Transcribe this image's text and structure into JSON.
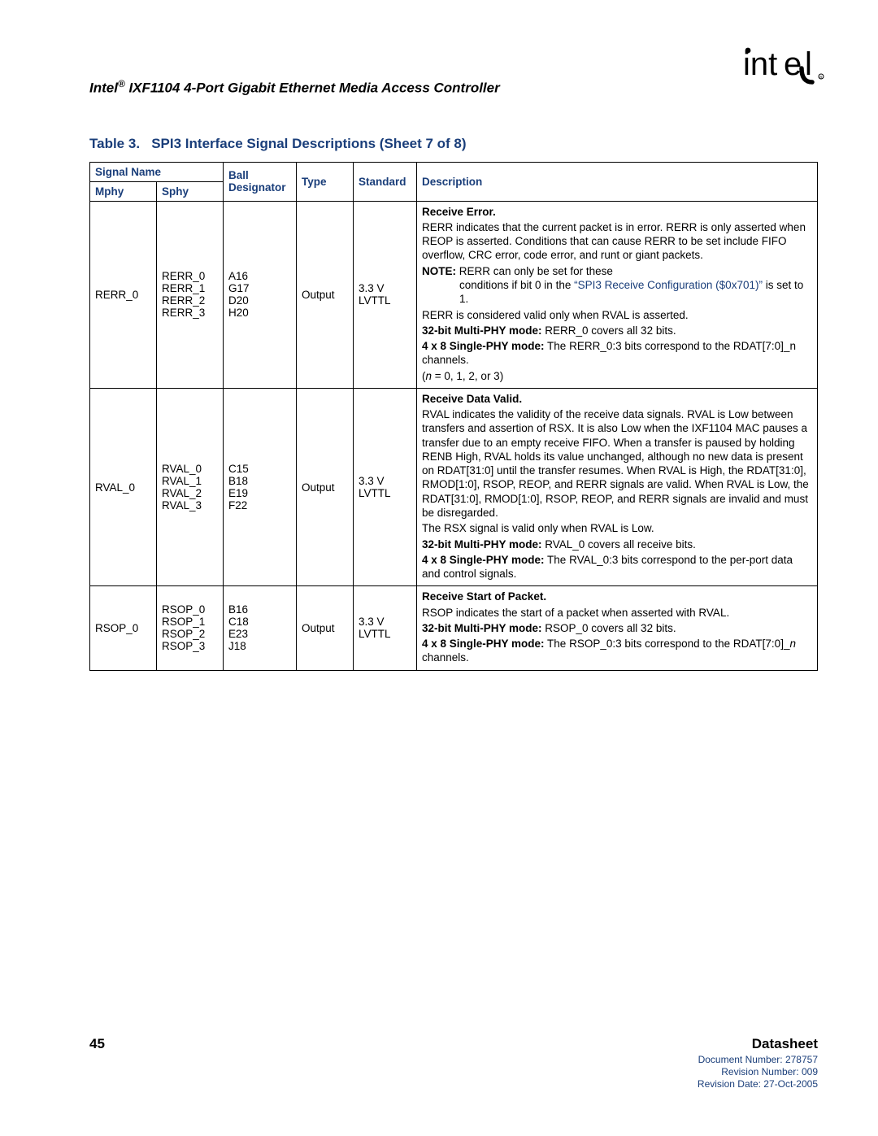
{
  "header": {
    "doc_title_html": "Intel<span class='sup'>®</span> IXF1104 4-Port Gigabit Ethernet Media Access Controller"
  },
  "table": {
    "title_prefix": "Table 3.",
    "title_rest": "SPI3 Interface Signal Descriptions (Sheet 7 of 8)",
    "headers": {
      "signal_name": "Signal Name",
      "mphy": "Mphy",
      "sphy": "Sphy",
      "ball": "Ball Designator",
      "type": "Type",
      "standard": "Standard",
      "description": "Description"
    },
    "rows": [
      {
        "mphy": "RERR_0",
        "sphy": "RERR_0\nRERR_1\nRERR_2\nRERR_3",
        "ball": "A16\nG17\nD20\nH20",
        "type": "Output",
        "standard": "3.3 V\nLVTTL",
        "desc_html": "<p><span class='bold'>Receive Error.</span></p><p>RERR indicates that the current packet is in error. RERR is only asserted when REOP is asserted. Conditions that can cause RERR to be set include FIFO overflow, CRC error, code error, and runt or giant packets.</p><p><span class='note-label'>NOTE:</span>  RERR can only be set for these<span class='indent'>conditions if bit 0 in the <span class='link'>“SPI3 Receive Configuration ($0x701)”</span> is set to 1.</span></p><p>RERR is considered valid only when RVAL is asserted.</p><p><span class='bold'>32-bit Multi-PHY mode:</span> RERR_0 covers all 32 bits.</p><p><span class='bold'>4 x 8 Single-PHY mode:</span> The RERR_0:3 bits correspond to the RDAT[7:0]_n channels.</p><p>(<i>n</i> = 0, 1, 2, or 3)</p>"
      },
      {
        "mphy": "RVAL_0",
        "sphy": "RVAL_0\nRVAL_1\nRVAL_2\nRVAL_3",
        "ball": "C15\nB18\nE19\nF22",
        "type": "Output",
        "standard": "3.3 V\nLVTTL",
        "desc_html": "<p><span class='bold'>Receive Data Valid.</span></p><p>RVAL indicates the validity of the receive data signals. RVAL is Low between transfers and assertion of RSX. It is also Low when the IXF1104 MAC pauses a transfer due to an empty receive FIFO. When a transfer is paused by holding RENB High, RVAL holds its value unchanged, although no new data is present on RDAT[31:0] until the transfer resumes. When RVAL is High, the RDAT[31:0], RMOD[1:0], RSOP, REOP, and RERR signals are valid. When RVAL is Low, the RDAT[31:0], RMOD[1:0], RSOP, REOP, and RERR signals are invalid and must be disregarded.</p><p>The RSX signal is valid only when RVAL is Low.</p><p><span class='bold'>32-bit Multi-PHY mode:</span> RVAL_0 covers all receive bits.</p><p><span class='bold'>4 x 8 Single-PHY mode:</span> The RVAL_0:3 bits correspond to the per-port data and control signals.</p>"
      },
      {
        "mphy": "RSOP_0",
        "sphy": "RSOP_0\nRSOP_1\nRSOP_2\nRSOP_3",
        "ball": "B16\nC18\nE23\nJ18",
        "type": "Output",
        "standard": "3.3 V\nLVTTL",
        "desc_html": "<p><span class='bold'>Receive Start of Packet.</span></p><p>RSOP indicates the start of a packet when asserted with RVAL.</p><p><span class='bold'>32-bit Multi-PHY mode:</span> RSOP_0 covers all 32 bits.</p><p><span class='bold'>4 x 8 Single-PHY mode:</span> The RSOP_0:3 bits correspond to the RDAT[7:0]_<i>n</i> channels.</p>"
      }
    ]
  },
  "footer": {
    "page": "45",
    "datasheet": "Datasheet",
    "docnum": "Document Number: 278757",
    "revnum": "Revision Number: 009",
    "revdate": "Revision Date: 27-Oct-2005"
  },
  "colors": {
    "accent": "#1a3e7a",
    "text": "#000000",
    "bg": "#ffffff"
  }
}
